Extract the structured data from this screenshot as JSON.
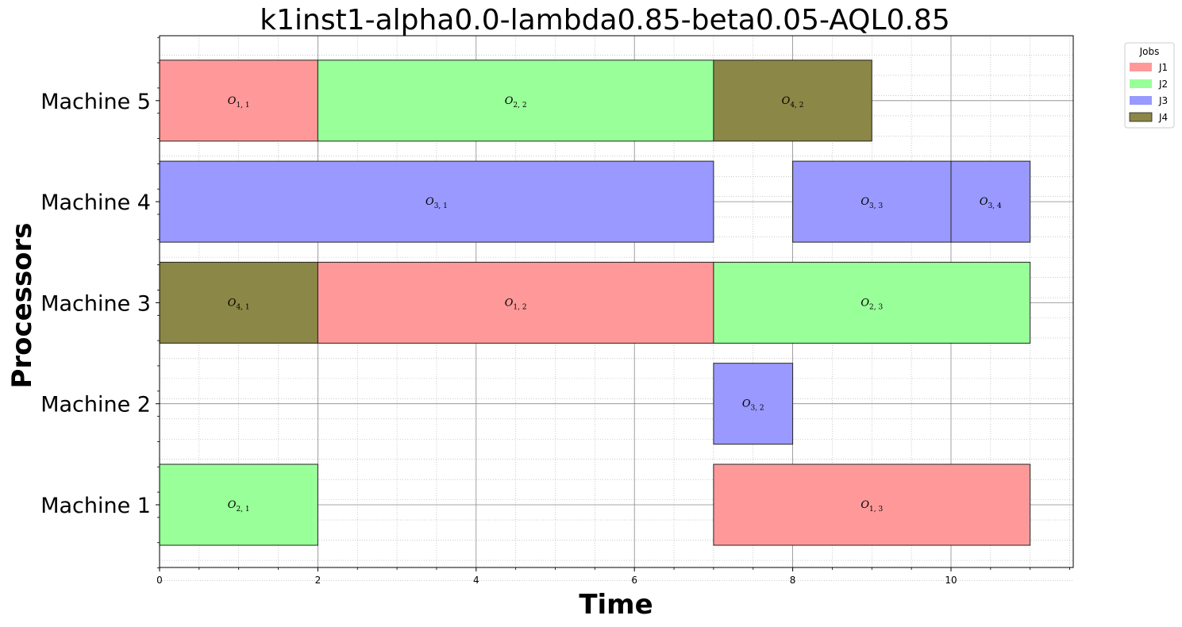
{
  "chart_data": {
    "type": "gantt",
    "title": "k1inst1-alpha0.0-lambda0.85-beta0.05-AQL0.85",
    "xlabel": "Time",
    "ylabel": "Processors",
    "xlim": [
      0,
      11.55
    ],
    "xticks": [
      0,
      2,
      4,
      6,
      8,
      10
    ],
    "grid": true,
    "machines": [
      "Machine 1",
      "Machine 2",
      "Machine 3",
      "Machine 4",
      "Machine 5"
    ],
    "legend": {
      "title": "Jobs",
      "placement": "outside-top-right",
      "entries": [
        {
          "label": "J1",
          "color": "#ff9999"
        },
        {
          "label": "J2",
          "color": "#99ff99"
        },
        {
          "label": "J3",
          "color": "#9999ff"
        },
        {
          "label": "J4",
          "color": "#8b8746"
        }
      ]
    },
    "operations": [
      {
        "machine": "Machine 5",
        "job": "J1",
        "start": 0,
        "end": 2,
        "label": "O",
        "sub": "1, 1"
      },
      {
        "machine": "Machine 5",
        "job": "J2",
        "start": 2,
        "end": 7,
        "label": "O",
        "sub": "2, 2"
      },
      {
        "machine": "Machine 5",
        "job": "J4",
        "start": 7,
        "end": 9,
        "label": "O",
        "sub": "4, 2"
      },
      {
        "machine": "Machine 4",
        "job": "J3",
        "start": 0,
        "end": 7,
        "label": "O",
        "sub": "3, 1"
      },
      {
        "machine": "Machine 4",
        "job": "J3",
        "start": 8,
        "end": 10,
        "label": "O",
        "sub": "3, 3"
      },
      {
        "machine": "Machine 4",
        "job": "J3",
        "start": 10,
        "end": 11,
        "label": "O",
        "sub": "3, 4"
      },
      {
        "machine": "Machine 3",
        "job": "J4",
        "start": 0,
        "end": 2,
        "label": "O",
        "sub": "4, 1"
      },
      {
        "machine": "Machine 3",
        "job": "J1",
        "start": 2,
        "end": 7,
        "label": "O",
        "sub": "1, 2"
      },
      {
        "machine": "Machine 3",
        "job": "J2",
        "start": 7,
        "end": 11,
        "label": "O",
        "sub": "2, 3"
      },
      {
        "machine": "Machine 2",
        "job": "J3",
        "start": 7,
        "end": 8,
        "label": "O",
        "sub": "3, 2"
      },
      {
        "machine": "Machine 1",
        "job": "J2",
        "start": 0,
        "end": 2,
        "label": "O",
        "sub": "2, 1"
      },
      {
        "machine": "Machine 1",
        "job": "J1",
        "start": 7,
        "end": 11,
        "label": "O",
        "sub": "1, 3"
      }
    ]
  }
}
